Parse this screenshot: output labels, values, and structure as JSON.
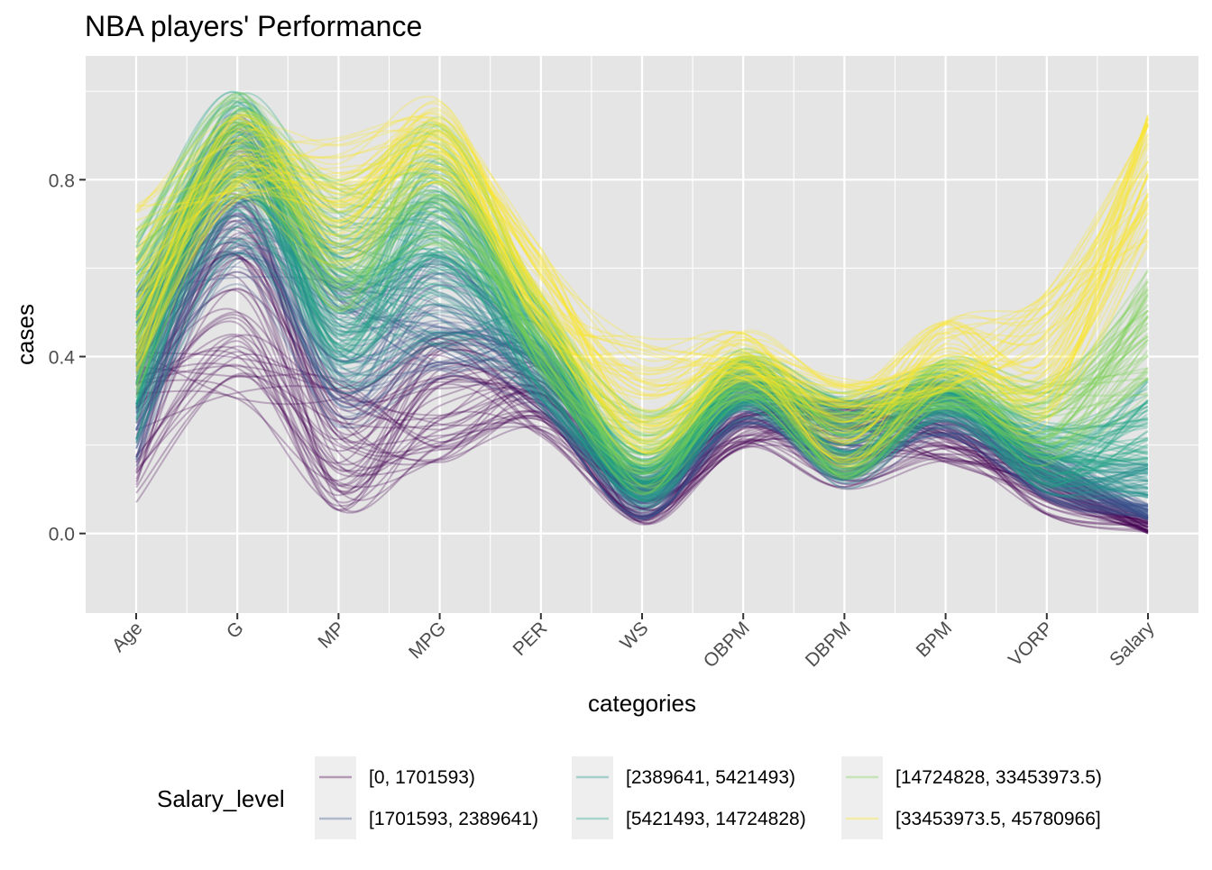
{
  "colors": {
    "panel": "#e5e5e5",
    "grid": "#ffffff",
    "tick_text": "#4d4d4d",
    "series": [
      "#440154",
      "#3b528b",
      "#21918c",
      "#21a585",
      "#7ad151",
      "#fde725"
    ]
  },
  "chart_data": {
    "type": "line",
    "subtype": "parallel coordinates (smoothed, alpha-blended lines)",
    "title": "NBA players' Performance",
    "xlabel": "categories",
    "ylabel": "cases",
    "categories": [
      "Age",
      "G",
      "MP",
      "MPG",
      "PER",
      "WS",
      "OBPM",
      "DBPM",
      "BPM",
      "VORP",
      "Salary"
    ],
    "ylim": [
      -0.18,
      1.08
    ],
    "yticks": [
      0.0,
      0.4,
      0.8
    ],
    "ytick_labels": [
      "0.0",
      "0.4",
      "0.8"
    ],
    "grid": true,
    "legend": {
      "title": "Salary_level",
      "position": "bottom",
      "entries": [
        "[0, 1701593)",
        "[1701593, 2389641)",
        "[2389641, 5421493)",
        "[5421493, 14724828)",
        "[14724828, 33453973.5)",
        "[33453973.5, 45780966]"
      ]
    },
    "series": [
      {
        "name": "[0, 1701593)",
        "color": "#440154",
        "typical_profile": [
          0.25,
          0.55,
          0.2,
          0.3,
          0.3,
          0.08,
          0.25,
          0.2,
          0.22,
          0.1,
          0.02
        ],
        "profile_spread": [
          0.18,
          0.25,
          0.15,
          0.15,
          0.08,
          0.06,
          0.06,
          0.1,
          0.06,
          0.06,
          0.02
        ]
      },
      {
        "name": "[1701593, 2389641)",
        "color": "#3b528b",
        "typical_profile": [
          0.35,
          0.75,
          0.4,
          0.5,
          0.35,
          0.08,
          0.3,
          0.2,
          0.28,
          0.13,
          0.05
        ],
        "profile_spread": [
          0.2,
          0.2,
          0.18,
          0.15,
          0.08,
          0.05,
          0.06,
          0.1,
          0.06,
          0.06,
          0.02
        ]
      },
      {
        "name": "[2389641, 5421493)",
        "color": "#21918c",
        "typical_profile": [
          0.4,
          0.8,
          0.5,
          0.6,
          0.38,
          0.1,
          0.32,
          0.2,
          0.3,
          0.15,
          0.12
        ],
        "profile_spread": [
          0.2,
          0.18,
          0.18,
          0.18,
          0.1,
          0.05,
          0.06,
          0.1,
          0.06,
          0.06,
          0.04
        ]
      },
      {
        "name": "[5421493, 14724828)",
        "color": "#21a585",
        "typical_profile": [
          0.45,
          0.85,
          0.55,
          0.7,
          0.42,
          0.13,
          0.34,
          0.22,
          0.32,
          0.18,
          0.25
        ],
        "profile_spread": [
          0.2,
          0.15,
          0.18,
          0.15,
          0.1,
          0.06,
          0.06,
          0.1,
          0.06,
          0.08,
          0.1
        ]
      },
      {
        "name": "[14724828, 33453973.5)",
        "color": "#7ad151",
        "typical_profile": [
          0.5,
          0.88,
          0.65,
          0.8,
          0.45,
          0.18,
          0.36,
          0.22,
          0.34,
          0.25,
          0.45
        ],
        "profile_spread": [
          0.2,
          0.12,
          0.15,
          0.15,
          0.1,
          0.1,
          0.06,
          0.1,
          0.06,
          0.1,
          0.15
        ]
      },
      {
        "name": "[33453973.5, 45780966]",
        "color": "#fde725",
        "typical_profile": [
          0.55,
          0.85,
          0.75,
          0.88,
          0.55,
          0.3,
          0.4,
          0.25,
          0.4,
          0.4,
          0.8
        ],
        "profile_spread": [
          0.2,
          0.1,
          0.15,
          0.1,
          0.1,
          0.15,
          0.06,
          0.1,
          0.08,
          0.15,
          0.15
        ]
      }
    ]
  }
}
